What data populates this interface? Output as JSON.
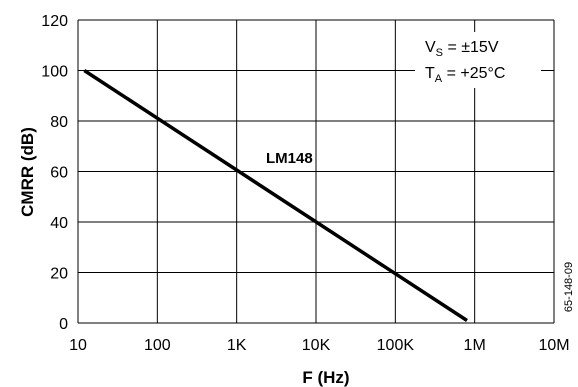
{
  "chart_data": {
    "type": "line",
    "x_scale": "log",
    "x_ticks": [
      "10",
      "100",
      "1K",
      "10K",
      "100K",
      "1M",
      "10M"
    ],
    "y_ticks": [
      "0",
      "20",
      "40",
      "60",
      "80",
      "100",
      "120"
    ],
    "xlim": [
      10,
      10000000
    ],
    "ylim": [
      0,
      120
    ],
    "grid": true,
    "xlabel": "F (Hz)",
    "ylabel": "CMRR (dB)",
    "series": [
      {
        "name": "LM148",
        "x": [
          12,
          800000
        ],
        "y": [
          100,
          1
        ]
      }
    ],
    "annotations": {
      "conditions": [
        {
          "main": "V",
          "sub": "S",
          "rest": " = ±15V"
        },
        {
          "main": "T",
          "sub": "A",
          "rest": " = +25°C"
        }
      ],
      "figure_id": "65-148-09"
    }
  }
}
